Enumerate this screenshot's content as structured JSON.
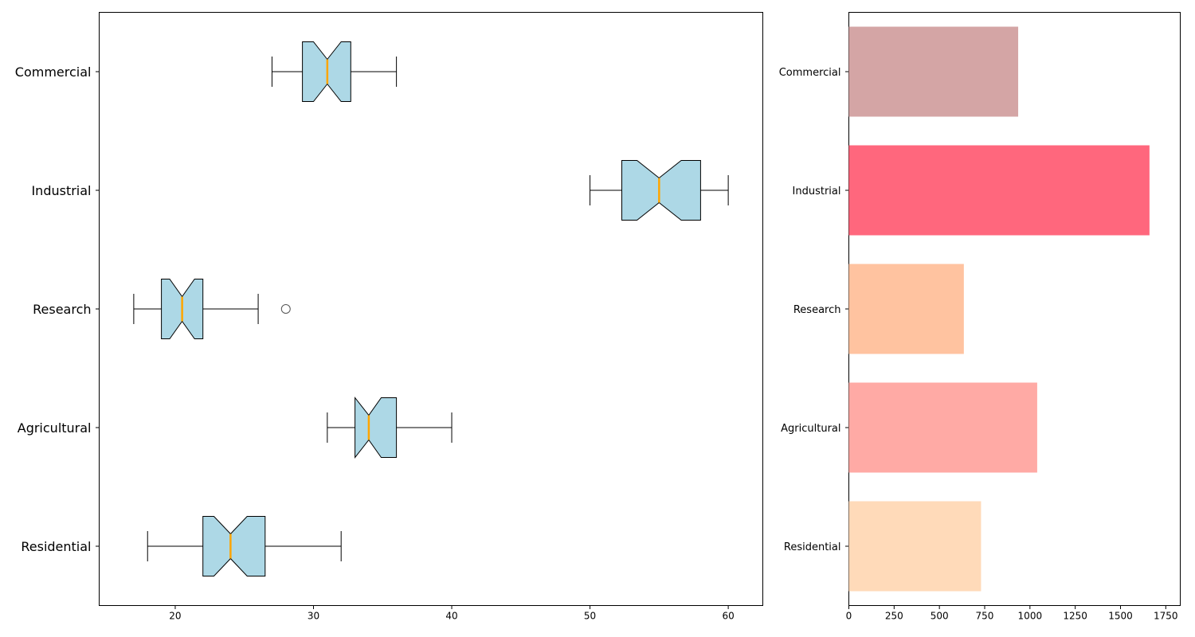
{
  "chart_data": [
    {
      "type": "boxplot",
      "orientation": "horizontal",
      "notched": true,
      "categories": [
        "Residential",
        "Agricultural",
        "Research",
        "Industrial",
        "Commercial"
      ],
      "boxes": [
        {
          "name": "Residential",
          "whisker_low": 18,
          "q1": 22,
          "median": 24,
          "q3": 26.5,
          "whisker_high": 32,
          "notch": [
            22.8,
            25.2
          ],
          "outliers": []
        },
        {
          "name": "Agricultural",
          "whisker_low": 31,
          "q1": 33,
          "median": 34,
          "q3": 36,
          "whisker_high": 40,
          "notch": [
            33.0,
            34.9
          ],
          "outliers": []
        },
        {
          "name": "Research",
          "whisker_low": 17,
          "q1": 19,
          "median": 20.5,
          "q3": 22,
          "whisker_high": 26,
          "notch": [
            19.6,
            21.4
          ],
          "outliers": [
            28
          ]
        },
        {
          "name": "Industrial",
          "whisker_low": 50,
          "q1": 52.3,
          "median": 55,
          "q3": 58,
          "whisker_high": 60,
          "notch": [
            53.4,
            56.6
          ],
          "outliers": []
        },
        {
          "name": "Commercial",
          "whisker_low": 27,
          "q1": 29.2,
          "median": 31,
          "q3": 32.7,
          "whisker_high": 36,
          "notch": [
            30.0,
            32.0
          ],
          "outliers": []
        }
      ],
      "xticks": [
        20,
        30,
        40,
        50,
        60
      ],
      "xlim": [
        14.5,
        62.5
      ],
      "box_color": "#add8e6",
      "median_color": "#ffa500",
      "xlabel": "",
      "ylabel": "",
      "title": ""
    },
    {
      "type": "bar",
      "orientation": "horizontal",
      "categories": [
        "Residential",
        "Agricultural",
        "Research",
        "Industrial",
        "Commercial"
      ],
      "values": [
        730,
        1040,
        635,
        1660,
        935
      ],
      "colors": [
        "#ffdab9",
        "#ffaaa5",
        "#ffc3a0",
        "#ff677d",
        "#d4a5a5"
      ],
      "xticks": [
        0,
        250,
        500,
        750,
        1000,
        1250,
        1500,
        1750
      ],
      "xlim": [
        0,
        1830
      ],
      "xlabel": "",
      "ylabel": "",
      "title": ""
    }
  ]
}
